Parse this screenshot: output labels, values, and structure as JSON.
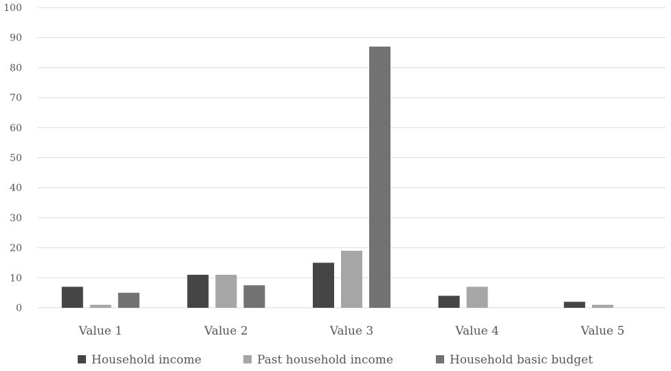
{
  "chart_data": {
    "type": "bar",
    "categories": [
      "Value 1",
      "Value 2",
      "Value 3",
      "Value 4",
      "Value 5"
    ],
    "series": [
      {
        "name": "Household income",
        "color": "#454545",
        "values": [
          7,
          11,
          15,
          4,
          2
        ]
      },
      {
        "name": "Past household income",
        "color": "#a6a6a6",
        "values": [
          1,
          11,
          19,
          7,
          1
        ]
      },
      {
        "name": "Household basic budget",
        "color": "#727272",
        "values": [
          5,
          7.5,
          87,
          0,
          0
        ]
      }
    ],
    "ylim": [
      0,
      100
    ],
    "yticks": [
      0,
      10,
      20,
      30,
      40,
      50,
      60,
      70,
      80,
      90,
      100
    ],
    "grid": true,
    "legend": "bottom"
  }
}
